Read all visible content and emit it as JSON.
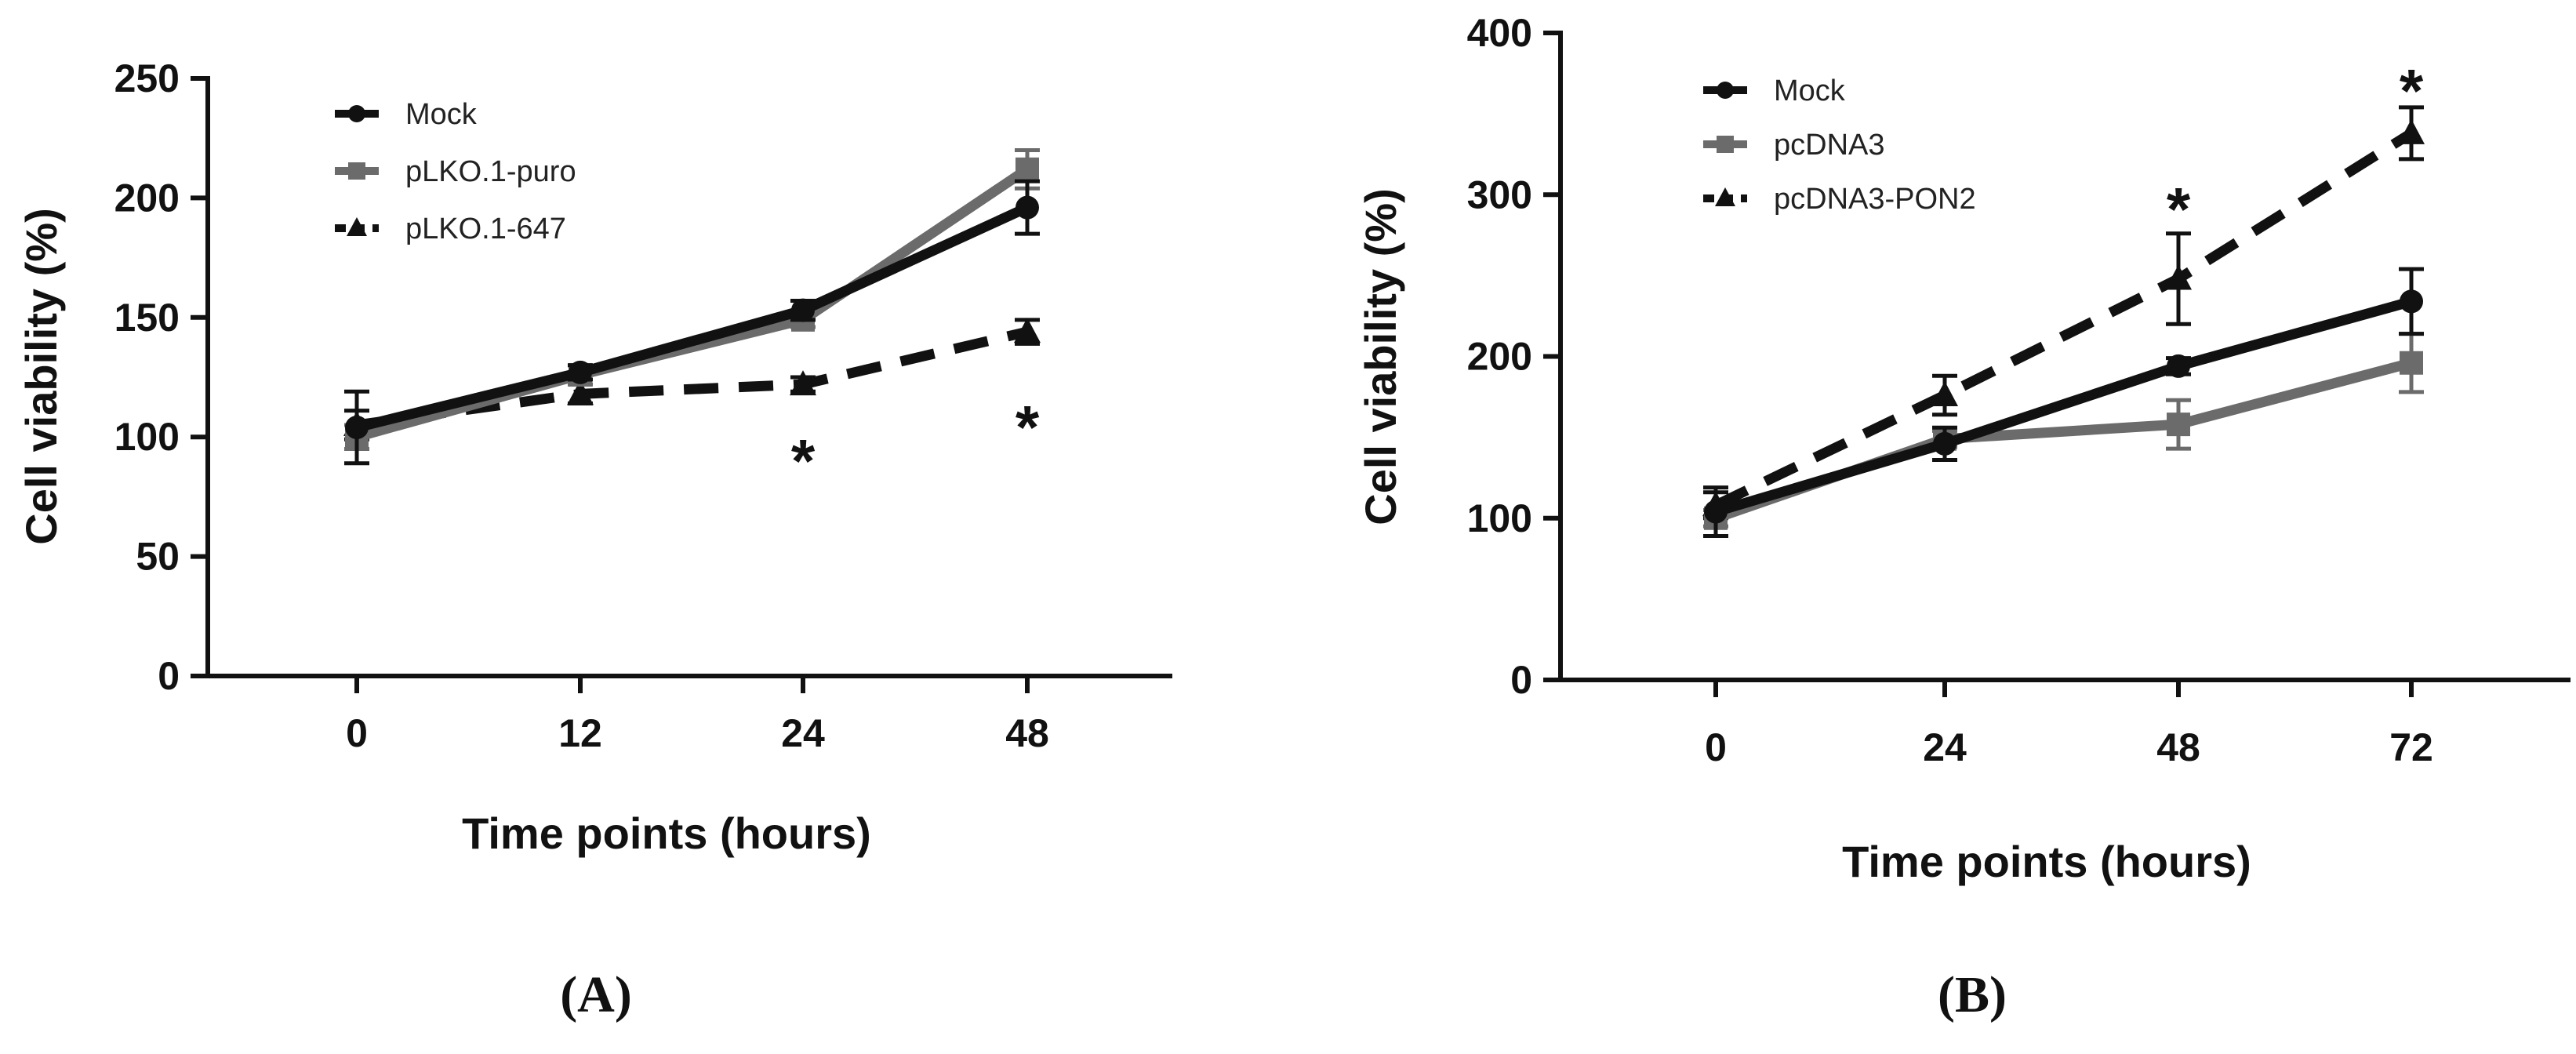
{
  "chart_data": [
    {
      "panel_label": "(A)",
      "type": "line",
      "xlabel": "Time points (hours)",
      "ylabel": "Cell viability (%)",
      "ylim": [
        0,
        250
      ],
      "yticks": [
        0,
        50,
        100,
        150,
        200,
        250
      ],
      "categories": [
        "0",
        "12",
        "24",
        "48"
      ],
      "series": [
        {
          "name": "Mock",
          "color": "#111111",
          "dash": "solid",
          "marker": "circle",
          "values": [
            104,
            127,
            153,
            196
          ],
          "errors": [
            15,
            3,
            4,
            11
          ]
        },
        {
          "name": "pLKO.1-puro",
          "color": "#6b6b6b",
          "dash": "solid",
          "marker": "square",
          "values": [
            100,
            126,
            149,
            212
          ],
          "errors": [
            5,
            4,
            3,
            8
          ]
        },
        {
          "name": "pLKO.1-647",
          "color": "#111111",
          "dash": "dashed",
          "marker": "triangle",
          "values": [
            105,
            118,
            122,
            144
          ],
          "errors": [
            6,
            4,
            3,
            5
          ]
        }
      ],
      "significance": [
        {
          "category": "24",
          "label": "*",
          "y_value": 96
        },
        {
          "category": "48",
          "label": "*",
          "y_value": 110
        }
      ]
    },
    {
      "panel_label": "(B)",
      "type": "line",
      "xlabel": "Time points (hours)",
      "ylabel": "Cell viability (%)",
      "ylim": [
        0,
        400
      ],
      "yticks": [
        0,
        100,
        200,
        300,
        400
      ],
      "categories": [
        "0",
        "24",
        "48",
        "72"
      ],
      "series": [
        {
          "name": "Mock",
          "color": "#111111",
          "dash": "solid",
          "marker": "circle",
          "values": [
            104,
            146,
            194,
            234
          ],
          "errors": [
            15,
            10,
            5,
            20
          ]
        },
        {
          "name": "pcDNA3",
          "color": "#6b6b6b",
          "dash": "solid",
          "marker": "square",
          "values": [
            100,
            149,
            158,
            196
          ],
          "errors": [
            5,
            5,
            15,
            18
          ]
        },
        {
          "name": "pcDNA3-PON2",
          "color": "#111111",
          "dash": "dashed",
          "marker": "triangle",
          "values": [
            108,
            176,
            248,
            338
          ],
          "errors": [
            8,
            12,
            28,
            16
          ]
        }
      ],
      "significance": [
        {
          "category": "48",
          "label": "*",
          "y_value": 300
        },
        {
          "category": "72",
          "label": "*",
          "y_value": 373
        }
      ]
    }
  ]
}
